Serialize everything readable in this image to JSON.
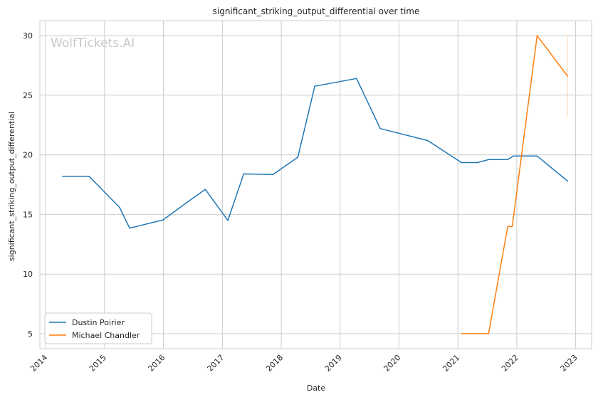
{
  "chart_data": {
    "type": "line",
    "title": "significant_striking_output_differential over time",
    "xlabel": "Date",
    "ylabel": "significant_striking_output_differential",
    "watermark": "WolfTickets.AI",
    "x_ticks": [
      "2014",
      "2015",
      "2016",
      "2017",
      "2018",
      "2019",
      "2020",
      "2021",
      "2022",
      "2023"
    ],
    "y_ticks": [
      5,
      10,
      15,
      20,
      25,
      30
    ],
    "xlim": [
      "2013-11-26",
      "2023-04-10"
    ],
    "ylim": [
      3.75,
      31.25
    ],
    "grid": true,
    "legend_position": "bottom-left",
    "series": [
      {
        "name": "Dustin Poirier",
        "color": "#1f77b4",
        "points": [
          {
            "x": "2014-04-16",
            "y": 18.2
          },
          {
            "x": "2014-09-27",
            "y": 18.2
          },
          {
            "x": "2015-04-04",
            "y": 15.6
          },
          {
            "x": "2015-06-06",
            "y": 13.85
          },
          {
            "x": "2015-12-31",
            "y": 14.55
          },
          {
            "x": "2016-06-04",
            "y": 16.1
          },
          {
            "x": "2016-09-17",
            "y": 17.1
          },
          {
            "x": "2017-02-04",
            "y": 14.5
          },
          {
            "x": "2017-05-13",
            "y": 18.4
          },
          {
            "x": "2017-11-11",
            "y": 18.35
          },
          {
            "x": "2018-04-14",
            "y": 19.8
          },
          {
            "x": "2018-07-28",
            "y": 25.75
          },
          {
            "x": "2019-04-13",
            "y": 26.4
          },
          {
            "x": "2019-09-07",
            "y": 22.2
          },
          {
            "x": "2020-06-27",
            "y": 21.2
          },
          {
            "x": "2021-01-23",
            "y": 19.35
          },
          {
            "x": "2021-05-01",
            "y": 19.35
          },
          {
            "x": "2021-07-10",
            "y": 19.6
          },
          {
            "x": "2021-11-06",
            "y": 19.6
          },
          {
            "x": "2021-12-11",
            "y": 19.9
          },
          {
            "x": "2022-05-07",
            "y": 19.9
          },
          {
            "x": "2022-11-12",
            "y": 17.8
          }
        ]
      },
      {
        "name": "Michael Chandler",
        "color": "#ff7f0e",
        "points": [
          {
            "x": "2021-01-23",
            "y": 5.0
          },
          {
            "x": "2021-07-10",
            "y": 5.0
          },
          {
            "x": "2021-11-06",
            "y": 14.0
          },
          {
            "x": "2021-12-04",
            "y": 14.0
          },
          {
            "x": "2022-05-07",
            "y": 30.0
          },
          {
            "x": "2022-11-12",
            "y": 26.6
          }
        ],
        "error_band": {
          "x": "2022-11-12",
          "low": 23.2,
          "high": 30.0
        }
      }
    ]
  }
}
